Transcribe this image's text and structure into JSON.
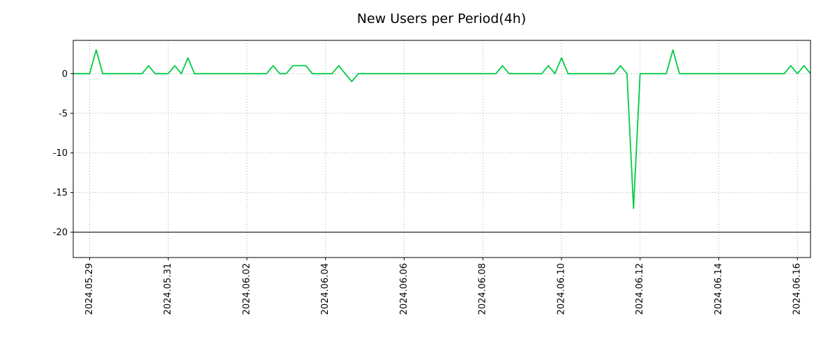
{
  "chart_data": {
    "type": "line",
    "title": "New Users per Period(4h)",
    "grid": "dotted",
    "legend": "none",
    "x_step_hours": 4,
    "xlim_hours": [
      2,
      452
    ],
    "ylim": [
      -23.2,
      4.2
    ],
    "baseline": -20,
    "colors": {
      "grid": "#aaaaaa",
      "axis": "#000000",
      "baseline": "#000000",
      "background": "#ffffff"
    },
    "x_ticks": [
      {
        "offset_h": 12,
        "label": "2024.05.29"
      },
      {
        "offset_h": 60,
        "label": "2024.05.31"
      },
      {
        "offset_h": 108,
        "label": "2024.06.02"
      },
      {
        "offset_h": 156,
        "label": "2024.06.04"
      },
      {
        "offset_h": 204,
        "label": "2024.06.06"
      },
      {
        "offset_h": 252,
        "label": "2024.06.08"
      },
      {
        "offset_h": 300,
        "label": "2024.06.10"
      },
      {
        "offset_h": 348,
        "label": "2024.06.12"
      },
      {
        "offset_h": 396,
        "label": "2024.06.14"
      },
      {
        "offset_h": 444,
        "label": "2024.06.16"
      }
    ],
    "y_ticks": [
      {
        "v": 0,
        "label": "0"
      },
      {
        "v": -5,
        "label": "-5"
      },
      {
        "v": -10,
        "label": "-10"
      },
      {
        "v": -15,
        "label": "-15"
      },
      {
        "v": -20,
        "label": "-20"
      }
    ],
    "series": [
      {
        "name": "New Users",
        "color": "#00cc44",
        "values": [
          0,
          0,
          0,
          0,
          3,
          0,
          0,
          0,
          0,
          0,
          0,
          0,
          1,
          0,
          0,
          0,
          1,
          0,
          2,
          0,
          0,
          0,
          0,
          0,
          0,
          0,
          0,
          0,
          0,
          0,
          0,
          1,
          0,
          0,
          1,
          1,
          1,
          0,
          0,
          0,
          0,
          1,
          0,
          -1,
          0,
          0,
          0,
          0,
          0,
          0,
          0,
          0,
          0,
          0,
          0,
          0,
          0,
          0,
          0,
          0,
          0,
          0,
          0,
          0,
          0,
          0,
          1,
          0,
          0,
          0,
          0,
          0,
          0,
          1,
          0,
          2,
          0,
          0,
          0,
          0,
          0,
          0,
          0,
          0,
          1,
          0,
          -17,
          0,
          0,
          0,
          0,
          0,
          3,
          0,
          0,
          0,
          0,
          0,
          0,
          0,
          0,
          0,
          0,
          0,
          0,
          0,
          0,
          0,
          0,
          0,
          1,
          0,
          1,
          0,
          0
        ]
      }
    ]
  }
}
